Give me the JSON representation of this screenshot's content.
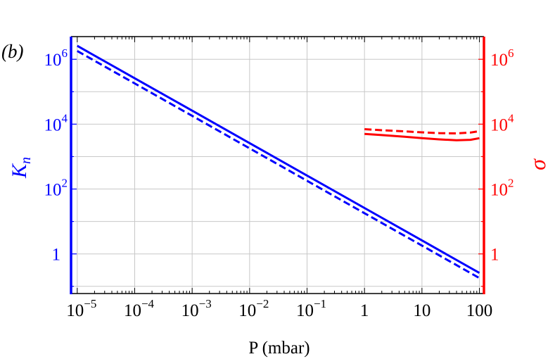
{
  "panel_label": "(b)",
  "chart_data": {
    "type": "line",
    "xlabel": "P (mbar)",
    "ylabel_left": "K",
    "ylabel_left_sub": "n",
    "ylabel_right": "σ",
    "x_scale": "log",
    "y_scale": "log",
    "xlim": [
      7.8e-06,
      120
    ],
    "ylim_left": [
      0.06,
      5000000
    ],
    "ylim_right": [
      0.06,
      5000000
    ],
    "grid": true,
    "x_ticks": [
      {
        "value": 1e-05,
        "base": "10",
        "exp": "−5"
      },
      {
        "value": 0.0001,
        "base": "10",
        "exp": "−4"
      },
      {
        "value": 0.001,
        "base": "10",
        "exp": "−3"
      },
      {
        "value": 0.01,
        "base": "10",
        "exp": "−2"
      },
      {
        "value": 0.1,
        "base": "10",
        "exp": "−1"
      },
      {
        "value": 1,
        "base": "1",
        "exp": ""
      },
      {
        "value": 10,
        "base": "10",
        "exp": ""
      },
      {
        "value": 100,
        "base": "100",
        "exp": ""
      }
    ],
    "y_ticks_left": [
      {
        "value": 1,
        "base": "1",
        "exp": ""
      },
      {
        "value": 100,
        "base": "10",
        "exp": "2"
      },
      {
        "value": 10000,
        "base": "10",
        "exp": "4"
      },
      {
        "value": 1000000,
        "base": "10",
        "exp": "6"
      }
    ],
    "y_ticks_right": [
      {
        "value": 1,
        "base": "1",
        "exp": ""
      },
      {
        "value": 100,
        "base": "10",
        "exp": "2"
      },
      {
        "value": 10000,
        "base": "10",
        "exp": "4"
      },
      {
        "value": 1000000,
        "base": "10",
        "exp": "6"
      }
    ],
    "colors": {
      "left": "#0000ff",
      "right": "#ff0000",
      "grid": "#c8c8c8"
    },
    "series": [
      {
        "axis": "left",
        "style": "solid",
        "color": "#0000ff",
        "x": [
          1e-05,
          0.0001,
          0.001,
          0.01,
          0.1,
          1,
          10,
          100
        ],
        "y": [
          2600000,
          260000,
          26000,
          2600,
          260,
          26,
          2.6,
          0.26
        ]
      },
      {
        "axis": "left",
        "style": "dashed",
        "color": "#0000ff",
        "x": [
          1e-05,
          0.0001,
          0.001,
          0.01,
          0.1,
          1,
          10,
          100
        ],
        "y": [
          1800000,
          180000,
          18000,
          1800,
          180,
          18,
          1.8,
          0.18
        ]
      },
      {
        "axis": "right",
        "style": "solid",
        "color": "#ff0000",
        "x": [
          1,
          2,
          5,
          10,
          20,
          40,
          70,
          100
        ],
        "y": [
          5000,
          4600,
          4100,
          3700,
          3400,
          3200,
          3300,
          3700
        ]
      },
      {
        "axis": "right",
        "style": "dashed",
        "color": "#ff0000",
        "x": [
          1,
          2,
          5,
          10,
          20,
          40,
          70,
          100
        ],
        "y": [
          7000,
          6500,
          6000,
          5600,
          5300,
          5200,
          5500,
          6100
        ]
      }
    ]
  }
}
